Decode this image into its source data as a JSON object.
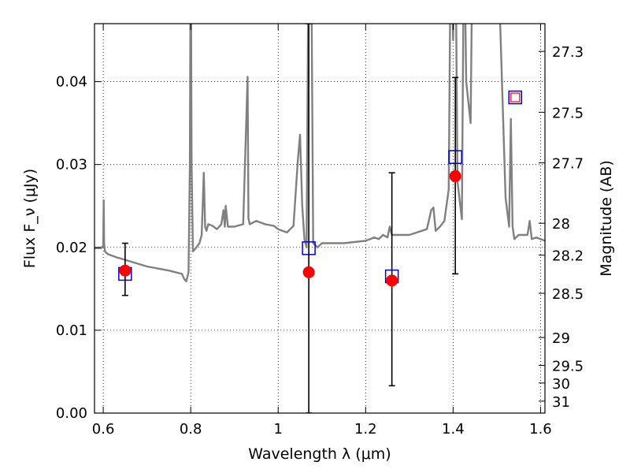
{
  "chart_data": {
    "type": "scatter",
    "xlabel": "Wavelength λ (μm)",
    "ylabel": "Flux F_ν (μJy)",
    "y2label": "Magnitude (AB)",
    "xlim": [
      0.58,
      1.61
    ],
    "ylim": [
      0.0,
      0.047
    ],
    "xticks": [
      0.6,
      0.8,
      1.0,
      1.2,
      1.4,
      1.6
    ],
    "xtick_labels": [
      "0.6",
      "0.8",
      "1",
      "1.2",
      "1.4",
      "1.6"
    ],
    "yticks": [
      0.0,
      0.01,
      0.02,
      0.03,
      0.04
    ],
    "ytick_labels": [
      "0.00",
      "0.01",
      "0.02",
      "0.03",
      "0.04"
    ],
    "y2ticks": [
      "27.3",
      "27.5",
      "27.7",
      "28",
      "28.2",
      "28.5",
      "29",
      "29.5",
      "30",
      "31"
    ],
    "grid": true,
    "colors": {
      "template": "#808080",
      "observed": "#ff0000",
      "model": "#0000cc",
      "errorbar": "#000000"
    },
    "template_spectrum": {
      "x": [
        0.58,
        0.595,
        0.6,
        0.601,
        0.602,
        0.604,
        0.61,
        0.62,
        0.63,
        0.65,
        0.7,
        0.75,
        0.78,
        0.785,
        0.79,
        0.795,
        0.798,
        0.8,
        0.802,
        0.805,
        0.81,
        0.82,
        0.825,
        0.83,
        0.833,
        0.836,
        0.84,
        0.85,
        0.86,
        0.87,
        0.875,
        0.878,
        0.88,
        0.885,
        0.89,
        0.9,
        0.92,
        0.93,
        0.932,
        0.935,
        0.95,
        0.97,
        0.99,
        1.0,
        1.02,
        1.035,
        1.045,
        1.05,
        1.055,
        1.06,
        1.065,
        1.07,
        1.075,
        1.08,
        1.09,
        1.1,
        1.15,
        1.2,
        1.22,
        1.23,
        1.24,
        1.25,
        1.255,
        1.26,
        1.3,
        1.34,
        1.35,
        1.355,
        1.36,
        1.37,
        1.38,
        1.39,
        1.395,
        1.4,
        1.405,
        1.41,
        1.42,
        1.425,
        1.43,
        1.44,
        1.445,
        1.45,
        1.46,
        1.48,
        1.5,
        1.52,
        1.528,
        1.532,
        1.536,
        1.54,
        1.55,
        1.56,
        1.57,
        1.575,
        1.58,
        1.59,
        1.6,
        1.61
      ],
      "y": [
        0.0199,
        0.0199,
        0.0202,
        0.0257,
        0.0205,
        0.0195,
        0.0192,
        0.019,
        0.0188,
        0.0185,
        0.0177,
        0.0172,
        0.0168,
        0.0162,
        0.0159,
        0.017,
        0.03,
        0.06,
        0.03,
        0.0195,
        0.0198,
        0.0205,
        0.0215,
        0.029,
        0.0225,
        0.022,
        0.0228,
        0.0226,
        0.0222,
        0.0228,
        0.0245,
        0.0225,
        0.025,
        0.0225,
        0.0225,
        0.0225,
        0.0228,
        0.0406,
        0.0235,
        0.0228,
        0.0232,
        0.0228,
        0.0226,
        0.0222,
        0.0218,
        0.0226,
        0.0305,
        0.0336,
        0.025,
        0.021,
        0.02,
        0.06,
        0.06,
        0.0205,
        0.02,
        0.0205,
        0.0205,
        0.0208,
        0.0212,
        0.021,
        0.0215,
        0.0212,
        0.0225,
        0.0215,
        0.0215,
        0.0222,
        0.0245,
        0.0248,
        0.022,
        0.0225,
        0.0232,
        0.027,
        0.06,
        0.045,
        0.06,
        0.028,
        0.0234,
        0.06,
        0.04,
        0.035,
        0.06,
        0.06,
        0.06,
        0.06,
        0.06,
        0.026,
        0.0225,
        0.0355,
        0.0225,
        0.021,
        0.0215,
        0.0215,
        0.0215,
        0.0232,
        0.021,
        0.0212,
        0.021,
        0.0208
      ]
    },
    "series": [
      {
        "x": [
          0.65,
          1.07,
          1.26,
          1.405
        ],
        "y": [
          0.0172,
          0.017,
          0.016,
          0.0286
        ],
        "marker": "filled-circle",
        "yerr_low": [
          0.0142,
          0.0,
          0.0033,
          0.0168
        ],
        "yerr_high": [
          0.0205,
          0.047,
          0.029,
          0.0405
        ]
      },
      {
        "x": [
          0.65,
          1.07,
          1.26,
          1.405,
          1.542
        ],
        "y": [
          0.0168,
          0.0199,
          0.0165,
          0.0309,
          0.0381
        ],
        "marker": "open-square"
      }
    ]
  }
}
